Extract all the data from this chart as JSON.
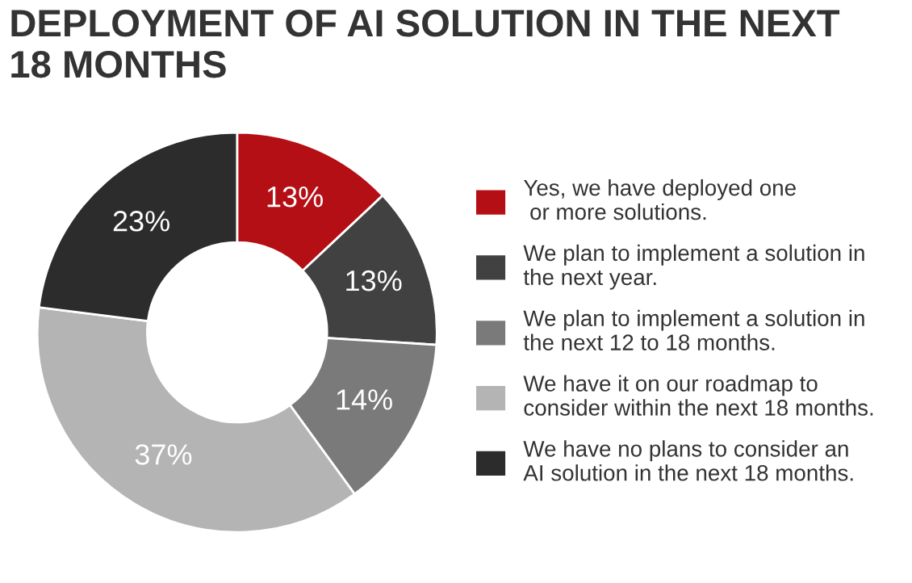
{
  "chart_data": {
    "type": "donut",
    "title": "DEPLOYMENT OF AI SOLUTION IN THE NEXT\n18 MONTHS",
    "categories": [
      "Yes, we have deployed one\n or more solutions.",
      "We plan to implement a solution in\nthe next year.",
      "We plan to implement a solution in\nthe next 12 to 18 months.",
      "We have it on our roadmap to\nconsider within the next 18 months.",
      "We have no plans to consider an\nAI solution in the next 18 months."
    ],
    "values": [
      13,
      13,
      14,
      37,
      23
    ],
    "value_labels": [
      "13%",
      "13%",
      "14%",
      "37%",
      "23%"
    ],
    "colors": [
      "#b50f16",
      "#414141",
      "#7a7a7a",
      "#b4b4b4",
      "#2c2c2c"
    ],
    "legend": "right"
  }
}
